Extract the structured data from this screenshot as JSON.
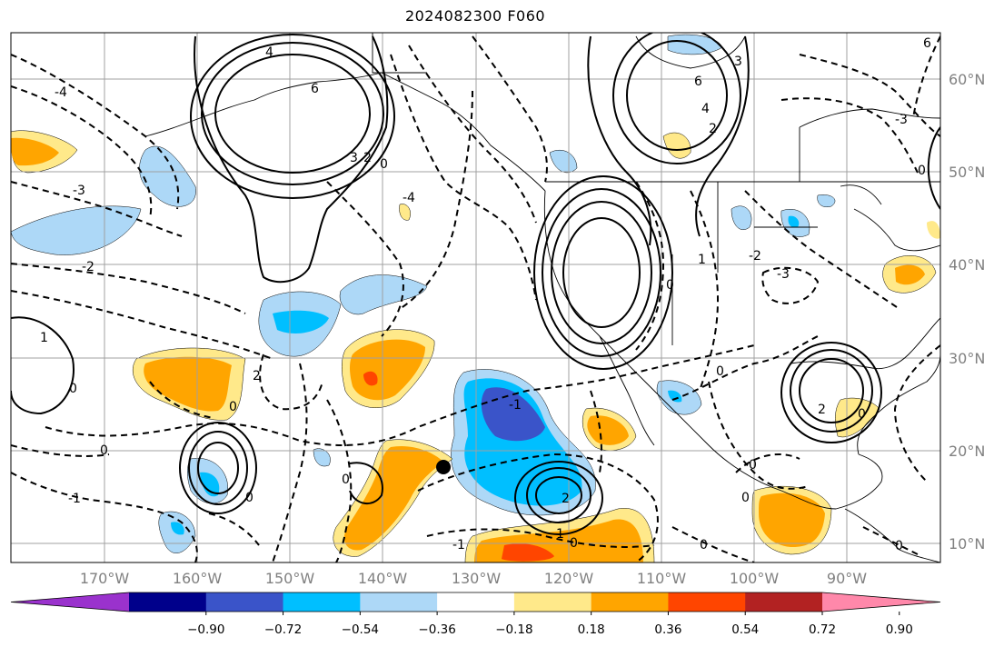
{
  "title": "2024082300 F060",
  "lon_labels": [
    "170°W",
    "160°W",
    "150°W",
    "140°W",
    "130°W",
    "120°W",
    "110°W",
    "100°W",
    "90°W"
  ],
  "lat_labels": [
    "60°N",
    "50°N",
    "40°N",
    "30°N",
    "20°N",
    "10°N"
  ],
  "colorbar": {
    "ticks": [
      "−0.90",
      "−0.72",
      "−0.54",
      "−0.36",
      "−0.18",
      "0.18",
      "0.36",
      "0.54",
      "0.72",
      "0.90"
    ],
    "colors": [
      "#9a32cd",
      "#00008b",
      "#3a54c9",
      "#00bfff",
      "#add8f7",
      "#ffffff",
      "#ffe98a",
      "#ffa500",
      "#ff4500",
      "#b22222",
      "#ff88aa"
    ]
  },
  "contour_labels": [
    "4",
    "6",
    "3",
    "2",
    "0",
    "-1",
    "-2",
    "-3",
    "-4",
    "1"
  ],
  "map_features": {
    "coastlines": "black",
    "graticule": "gray",
    "marker": "storm-center-dot"
  }
}
